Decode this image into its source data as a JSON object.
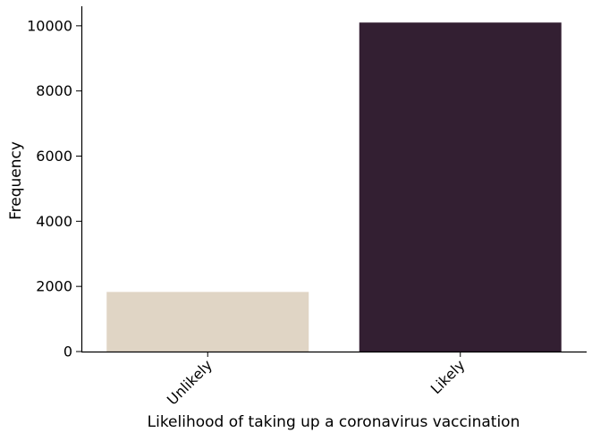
{
  "chart_data": {
    "type": "bar",
    "categories": [
      "Unlikely",
      "Likely"
    ],
    "values": [
      1830,
      10100
    ],
    "colors": [
      "#e0d5c5",
      "#331f32"
    ],
    "xlabel": "Likelihood of taking up a coronavirus vaccination",
    "ylabel": "Frequency",
    "ylim": [
      0,
      10600
    ],
    "yticks": [
      0,
      2000,
      4000,
      6000,
      8000,
      10000
    ],
    "ytick_labels": [
      "0",
      "2000",
      "4000",
      "6000",
      "8000",
      "10000"
    ],
    "grid": false,
    "legend": "none"
  }
}
